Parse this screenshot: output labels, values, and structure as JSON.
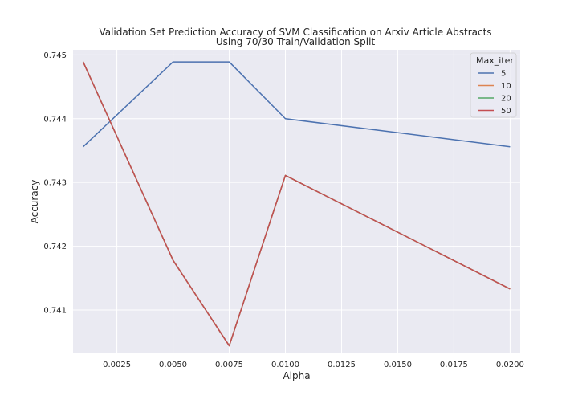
{
  "chart_data": {
    "type": "line",
    "title_line1": "Validation Set Prediction Accuracy of SVM Classification on Arxiv Article Abstracts",
    "title_line2": "Using 70/30 Train/Validation Split",
    "xlabel": "Alpha",
    "ylabel": "Accuracy",
    "xlim": [
      0.00055,
      0.02045
    ],
    "ylim": [
      0.74032,
      0.74508
    ],
    "x_ticks": [
      0.0025,
      0.005,
      0.0075,
      0.01,
      0.0125,
      0.015,
      0.0175,
      0.02
    ],
    "x_tick_labels": [
      "0.0025",
      "0.0050",
      "0.0075",
      "0.0100",
      "0.0125",
      "0.0150",
      "0.0175",
      "0.0200"
    ],
    "y_ticks": [
      0.741,
      0.742,
      0.743,
      0.744,
      0.745
    ],
    "y_tick_labels": [
      "0.741",
      "0.742",
      "0.743",
      "0.744",
      "0.745"
    ],
    "x": [
      0.001,
      0.005,
      0.0075,
      0.01,
      0.02
    ],
    "legend_title": "Max_iter",
    "legend_position": "top-right",
    "grid": true,
    "background": "#eaeaf2",
    "series": [
      {
        "name": "5",
        "color": "#4c72b0",
        "values": [
          0.74356,
          0.74489,
          0.74489,
          0.744,
          0.74356
        ]
      },
      {
        "name": "10",
        "color": "#dd8452",
        "values": [
          0.74489,
          0.74178,
          0.74044,
          0.74311,
          0.74133
        ]
      },
      {
        "name": "20",
        "color": "#55a868",
        "values": [
          0.74489,
          0.74178,
          0.74044,
          0.74311,
          0.74133
        ]
      },
      {
        "name": "50",
        "color": "#c44e52",
        "values": [
          0.74489,
          0.74178,
          0.74044,
          0.74311,
          0.74133
        ]
      }
    ]
  }
}
